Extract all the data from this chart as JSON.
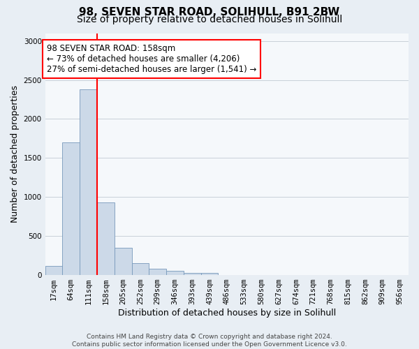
{
  "title_line1": "98, SEVEN STAR ROAD, SOLIHULL, B91 2BW",
  "title_line2": "Size of property relative to detached houses in Solihull",
  "xlabel": "Distribution of detached houses by size in Solihull",
  "ylabel": "Number of detached properties",
  "footnote": "Contains HM Land Registry data © Crown copyright and database right 2024.\nContains public sector information licensed under the Open Government Licence v3.0.",
  "bar_labels": [
    "17sqm",
    "64sqm",
    "111sqm",
    "158sqm",
    "205sqm",
    "252sqm",
    "299sqm",
    "346sqm",
    "393sqm",
    "439sqm",
    "486sqm",
    "533sqm",
    "580sqm",
    "627sqm",
    "674sqm",
    "721sqm",
    "768sqm",
    "815sqm",
    "862sqm",
    "909sqm",
    "956sqm"
  ],
  "bar_values": [
    120,
    1700,
    2380,
    930,
    350,
    155,
    80,
    55,
    30,
    30,
    5,
    5,
    2,
    0,
    0,
    0,
    0,
    0,
    0,
    0,
    0
  ],
  "bar_color": "#ccd9e8",
  "bar_edge_color": "#7799bb",
  "red_line_index": 3,
  "annotation_text": "98 SEVEN STAR ROAD: 158sqm\n← 73% of detached houses are smaller (4,206)\n27% of semi-detached houses are larger (1,541) →",
  "annotation_box_facecolor": "white",
  "annotation_box_edgecolor": "red",
  "red_line_color": "red",
  "ylim": [
    0,
    3100
  ],
  "yticks": [
    0,
    500,
    1000,
    1500,
    2000,
    2500,
    3000
  ],
  "fig_background_color": "#e8eef4",
  "plot_background_color": "#f5f8fb",
  "grid_color": "#c8d0d8",
  "title_fontsize": 11,
  "subtitle_fontsize": 10,
  "ylabel_fontsize": 9,
  "xlabel_fontsize": 9,
  "tick_fontsize": 7.5,
  "annotation_fontsize": 8.5,
  "footnote_fontsize": 6.5
}
